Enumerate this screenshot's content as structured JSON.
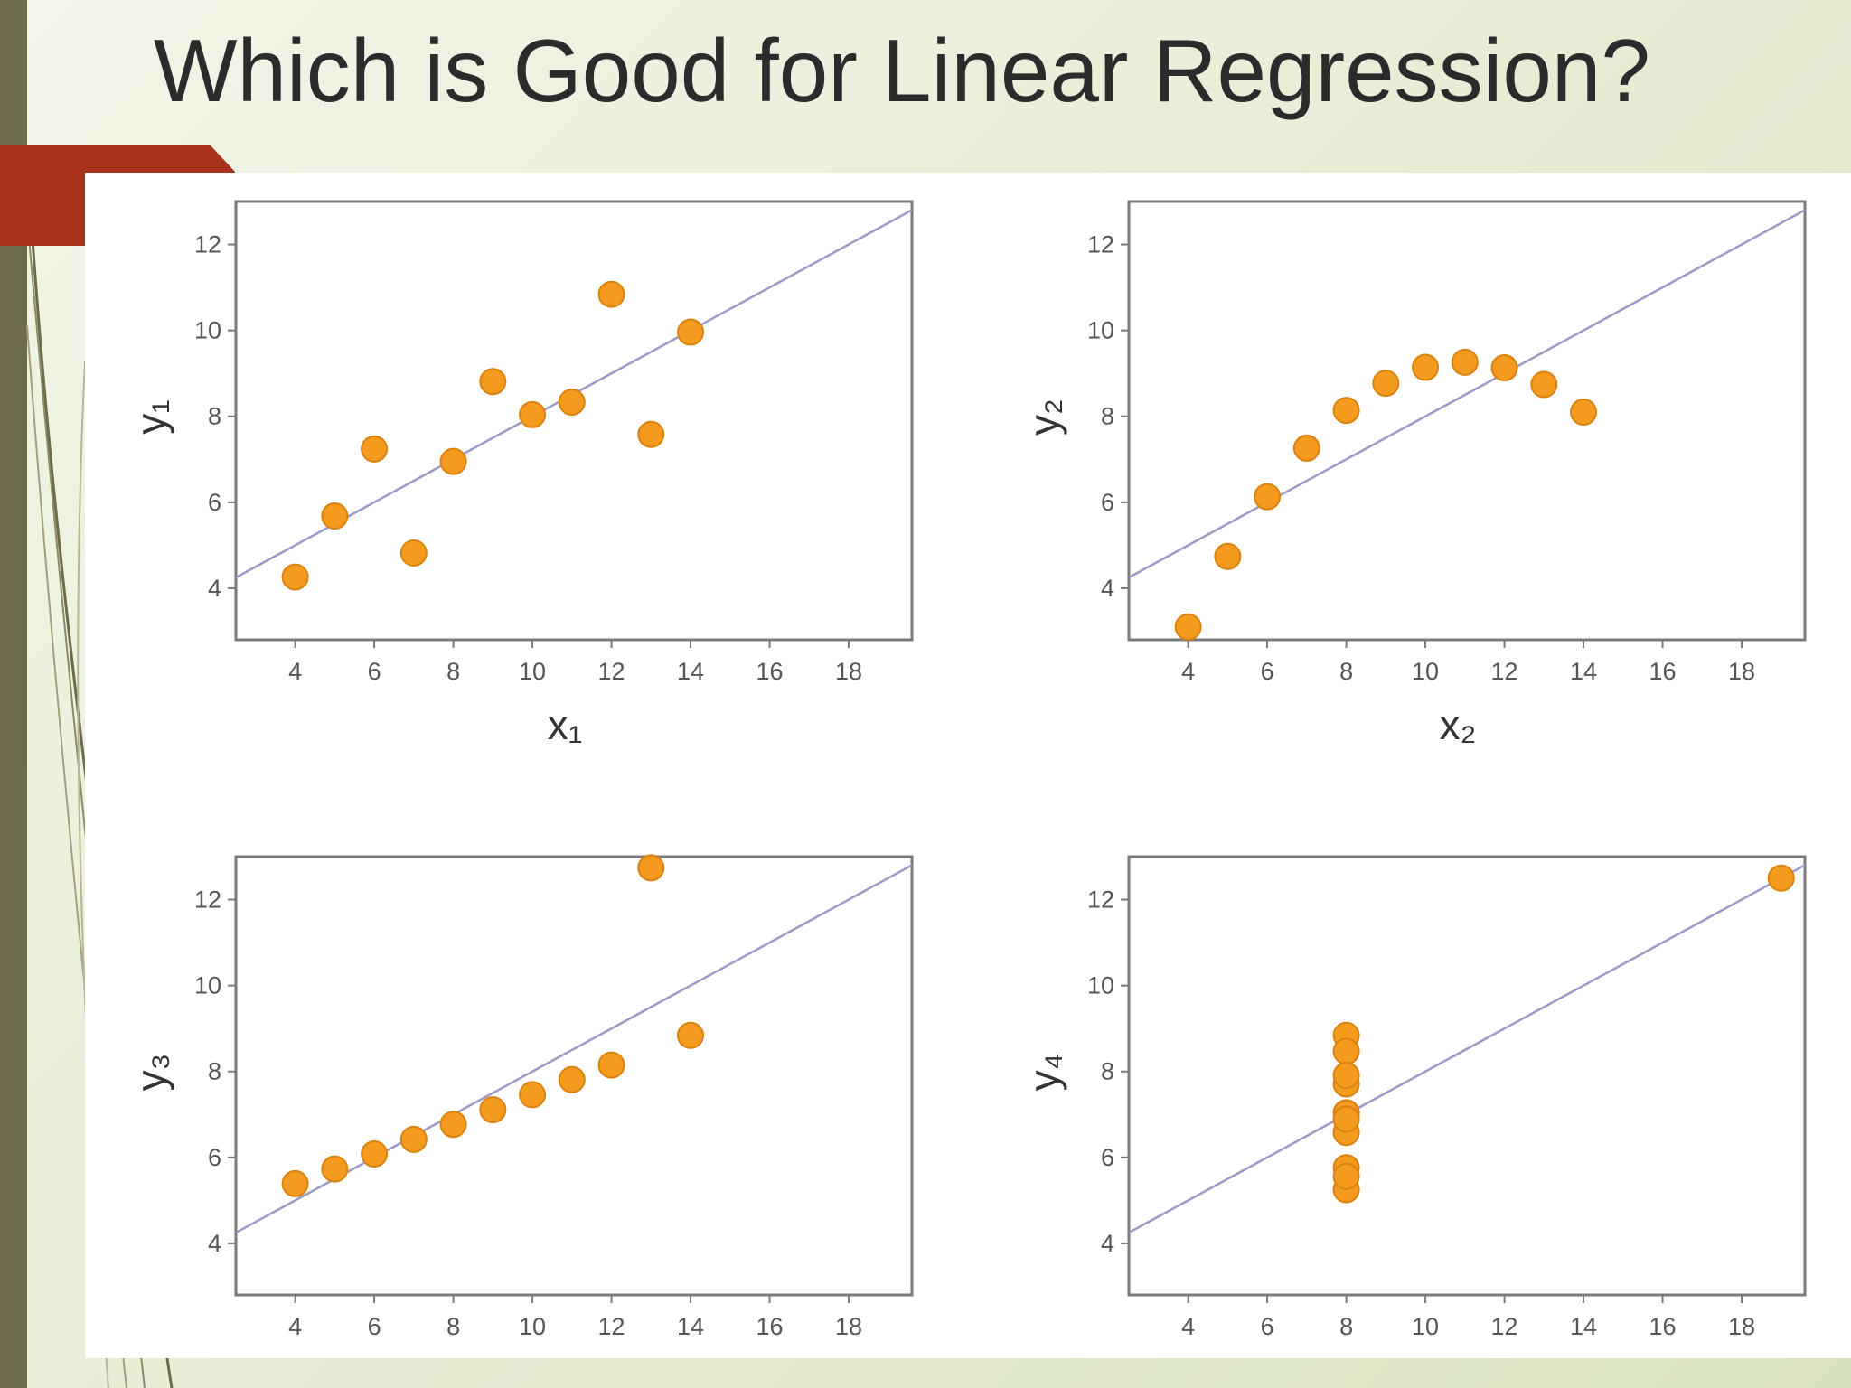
{
  "slide": {
    "title": "Which is Good for Linear Regression?"
  },
  "colors": {
    "point_fill": "#f39a1f",
    "point_stroke": "#d9820f",
    "regression_line": "#9a9ac6",
    "axis": "#7a7a7a",
    "tick_label": "#555555",
    "accent_red": "#a8321c",
    "left_bar": "#6e6a4c"
  },
  "chart_data": [
    {
      "type": "scatter",
      "xlabel": "x₁",
      "ylabel": "y₁",
      "xlim": [
        2.5,
        19.6
      ],
      "ylim": [
        2.8,
        13.0
      ],
      "xticks": [
        4,
        6,
        8,
        10,
        12,
        14,
        16,
        18
      ],
      "yticks": [
        4,
        6,
        8,
        10,
        12
      ],
      "x": [
        4,
        5,
        6,
        7,
        8,
        9,
        10,
        11,
        12,
        13,
        14
      ],
      "y": [
        4.26,
        5.68,
        7.24,
        4.82,
        6.95,
        8.81,
        8.04,
        8.33,
        10.84,
        7.58,
        9.96
      ],
      "fit_line": {
        "intercept": 3.0,
        "slope": 0.5
      },
      "grid": false
    },
    {
      "type": "scatter",
      "xlabel": "x₂",
      "ylabel": "y₂",
      "xlim": [
        2.5,
        19.6
      ],
      "ylim": [
        2.8,
        13.0
      ],
      "xticks": [
        4,
        6,
        8,
        10,
        12,
        14,
        16,
        18
      ],
      "yticks": [
        4,
        6,
        8,
        10,
        12
      ],
      "x": [
        4,
        5,
        6,
        7,
        8,
        9,
        10,
        11,
        12,
        13,
        14
      ],
      "y": [
        3.1,
        4.74,
        6.13,
        7.26,
        8.14,
        8.77,
        9.14,
        9.26,
        9.13,
        8.74,
        8.1
      ],
      "fit_line": {
        "intercept": 3.0,
        "slope": 0.5
      },
      "grid": false
    },
    {
      "type": "scatter",
      "xlabel": "",
      "ylabel": "y₃",
      "xlim": [
        2.5,
        19.6
      ],
      "ylim": [
        2.8,
        13.0
      ],
      "xticks": [
        4,
        6,
        8,
        10,
        12,
        14,
        16,
        18
      ],
      "yticks": [
        4,
        6,
        8,
        10,
        12
      ],
      "x": [
        4,
        5,
        6,
        7,
        8,
        9,
        10,
        11,
        12,
        13,
        14
      ],
      "y": [
        5.39,
        5.73,
        6.08,
        6.42,
        6.77,
        7.11,
        7.46,
        7.81,
        8.15,
        12.74,
        8.84
      ],
      "fit_line": {
        "intercept": 3.0,
        "slope": 0.5
      },
      "grid": false
    },
    {
      "type": "scatter",
      "xlabel": "",
      "ylabel": "y₄",
      "xlim": [
        2.5,
        19.6
      ],
      "ylim": [
        2.8,
        13.0
      ],
      "xticks": [
        4,
        6,
        8,
        10,
        12,
        14,
        16,
        18
      ],
      "yticks": [
        4,
        6,
        8,
        10,
        12
      ],
      "x": [
        8,
        8,
        8,
        8,
        8,
        8,
        8,
        8,
        8,
        8,
        19
      ],
      "y": [
        6.58,
        5.76,
        7.71,
        8.84,
        8.47,
        7.04,
        5.25,
        5.56,
        7.91,
        6.89,
        12.5
      ],
      "fit_line": {
        "intercept": 3.0,
        "slope": 0.5
      },
      "grid": false
    }
  ]
}
